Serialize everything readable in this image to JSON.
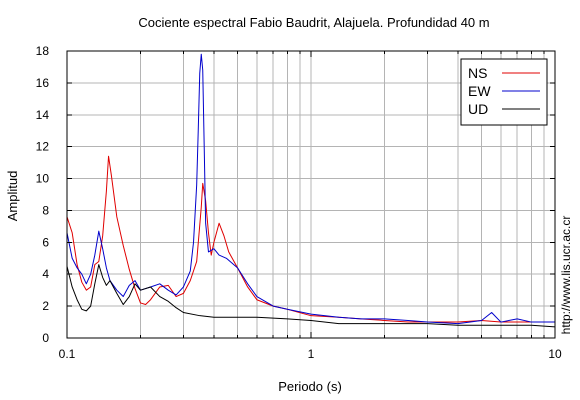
{
  "chart_data": {
    "type": "line",
    "title": "Cociente espectral Fabio Baudrit, Alajuela. Profundidad 40 m",
    "xlabel": "Periodo (s)",
    "ylabel": "Amplitud",
    "xscale": "log",
    "xlim": [
      0.1,
      10
    ],
    "ylim": [
      0,
      18
    ],
    "x_ticks": [
      0.1,
      1,
      10
    ],
    "x_tick_labels": [
      "0.1",
      "1",
      "10"
    ],
    "y_ticks": [
      0,
      2,
      4,
      6,
      8,
      10,
      12,
      14,
      16,
      18
    ],
    "y_tick_labels": [
      "0",
      "2",
      "4",
      "6",
      "8",
      "10",
      "12",
      "14",
      "16",
      "18"
    ],
    "grid": true,
    "legend_position": "top-right",
    "side_label": "http://www.lis.ucr.ac.cr",
    "series": [
      {
        "name": "NS",
        "color": "#e00000",
        "points": [
          [
            0.1,
            7.6
          ],
          [
            0.105,
            6.6
          ],
          [
            0.11,
            4.6
          ],
          [
            0.115,
            3.5
          ],
          [
            0.12,
            3.0
          ],
          [
            0.125,
            3.2
          ],
          [
            0.13,
            4.6
          ],
          [
            0.135,
            4.8
          ],
          [
            0.14,
            6.4
          ],
          [
            0.145,
            9.2
          ],
          [
            0.148,
            11.4
          ],
          [
            0.152,
            10.2
          ],
          [
            0.16,
            7.6
          ],
          [
            0.17,
            5.8
          ],
          [
            0.18,
            4.3
          ],
          [
            0.19,
            3.1
          ],
          [
            0.2,
            2.2
          ],
          [
            0.21,
            2.1
          ],
          [
            0.22,
            2.4
          ],
          [
            0.24,
            3.2
          ],
          [
            0.26,
            3.3
          ],
          [
            0.28,
            2.6
          ],
          [
            0.3,
            2.8
          ],
          [
            0.32,
            3.6
          ],
          [
            0.34,
            4.8
          ],
          [
            0.355,
            8.2
          ],
          [
            0.36,
            9.7
          ],
          [
            0.37,
            8.6
          ],
          [
            0.38,
            6.6
          ],
          [
            0.39,
            5.2
          ],
          [
            0.4,
            6.0
          ],
          [
            0.42,
            7.2
          ],
          [
            0.44,
            6.4
          ],
          [
            0.46,
            5.4
          ],
          [
            0.5,
            4.4
          ],
          [
            0.55,
            3.2
          ],
          [
            0.6,
            2.4
          ],
          [
            0.7,
            2.0
          ],
          [
            0.8,
            1.8
          ],
          [
            1.0,
            1.4
          ],
          [
            1.3,
            1.3
          ],
          [
            1.6,
            1.2
          ],
          [
            2.0,
            1.1
          ],
          [
            2.5,
            1.0
          ],
          [
            3.0,
            1.0
          ],
          [
            4.0,
            1.0
          ],
          [
            5.0,
            1.1
          ],
          [
            6.0,
            1.0
          ],
          [
            8.0,
            1.0
          ],
          [
            10.0,
            1.0
          ]
        ]
      },
      {
        "name": "EW",
        "color": "#0000cc",
        "points": [
          [
            0.1,
            6.6
          ],
          [
            0.105,
            5.0
          ],
          [
            0.11,
            4.4
          ],
          [
            0.115,
            4.0
          ],
          [
            0.12,
            3.4
          ],
          [
            0.125,
            4.0
          ],
          [
            0.13,
            5.2
          ],
          [
            0.135,
            6.7
          ],
          [
            0.14,
            5.6
          ],
          [
            0.145,
            4.4
          ],
          [
            0.15,
            3.6
          ],
          [
            0.16,
            3.0
          ],
          [
            0.17,
            2.6
          ],
          [
            0.18,
            3.3
          ],
          [
            0.19,
            3.6
          ],
          [
            0.2,
            3.0
          ],
          [
            0.22,
            3.2
          ],
          [
            0.24,
            3.4
          ],
          [
            0.26,
            3.0
          ],
          [
            0.28,
            2.7
          ],
          [
            0.3,
            3.2
          ],
          [
            0.32,
            4.2
          ],
          [
            0.33,
            6.0
          ],
          [
            0.34,
            9.6
          ],
          [
            0.345,
            13.0
          ],
          [
            0.35,
            16.6
          ],
          [
            0.355,
            17.8
          ],
          [
            0.36,
            16.8
          ],
          [
            0.365,
            12.0
          ],
          [
            0.37,
            7.2
          ],
          [
            0.38,
            5.4
          ],
          [
            0.4,
            5.6
          ],
          [
            0.42,
            5.2
          ],
          [
            0.45,
            5.0
          ],
          [
            0.5,
            4.4
          ],
          [
            0.55,
            3.4
          ],
          [
            0.6,
            2.6
          ],
          [
            0.7,
            2.0
          ],
          [
            0.8,
            1.8
          ],
          [
            1.0,
            1.5
          ],
          [
            1.3,
            1.3
          ],
          [
            1.6,
            1.2
          ],
          [
            2.0,
            1.2
          ],
          [
            2.5,
            1.1
          ],
          [
            3.0,
            1.0
          ],
          [
            4.0,
            0.9
          ],
          [
            5.0,
            1.1
          ],
          [
            5.5,
            1.6
          ],
          [
            6.0,
            1.0
          ],
          [
            7.0,
            1.2
          ],
          [
            8.0,
            1.0
          ],
          [
            10.0,
            1.0
          ]
        ]
      },
      {
        "name": "UD",
        "color": "#000000",
        "points": [
          [
            0.1,
            4.5
          ],
          [
            0.105,
            3.2
          ],
          [
            0.11,
            2.4
          ],
          [
            0.115,
            1.8
          ],
          [
            0.12,
            1.7
          ],
          [
            0.125,
            2.0
          ],
          [
            0.13,
            3.4
          ],
          [
            0.135,
            4.6
          ],
          [
            0.14,
            3.8
          ],
          [
            0.145,
            3.3
          ],
          [
            0.15,
            3.6
          ],
          [
            0.16,
            2.8
          ],
          [
            0.17,
            2.1
          ],
          [
            0.18,
            2.6
          ],
          [
            0.19,
            3.4
          ],
          [
            0.2,
            3.0
          ],
          [
            0.22,
            3.2
          ],
          [
            0.24,
            2.6
          ],
          [
            0.26,
            2.3
          ],
          [
            0.28,
            1.9
          ],
          [
            0.3,
            1.6
          ],
          [
            0.35,
            1.4
          ],
          [
            0.4,
            1.3
          ],
          [
            0.5,
            1.3
          ],
          [
            0.6,
            1.3
          ],
          [
            0.8,
            1.2
          ],
          [
            1.0,
            1.1
          ],
          [
            1.3,
            0.9
          ],
          [
            1.6,
            0.9
          ],
          [
            2.0,
            0.9
          ],
          [
            3.0,
            0.9
          ],
          [
            4.0,
            0.8
          ],
          [
            5.0,
            0.8
          ],
          [
            6.0,
            0.8
          ],
          [
            8.0,
            0.8
          ],
          [
            10.0,
            0.7
          ]
        ]
      }
    ]
  }
}
